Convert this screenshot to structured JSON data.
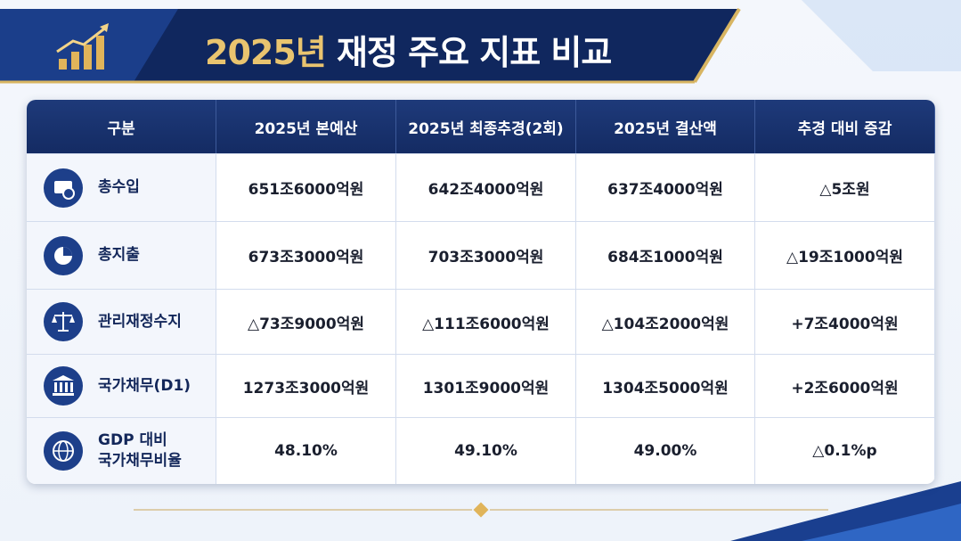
{
  "header": {
    "title": [
      "2025년",
      "재정 주요 지표 비교"
    ]
  },
  "table": {
    "columns": [
      "구분",
      "2025년 본예산",
      "2025년 최종추경(2회)",
      "2025년 결산액",
      "추경 대비 증감"
    ],
    "rows": [
      {
        "label": [
          "총수입"
        ],
        "cells": [
          "651조6000억원",
          "642조4000억원",
          "637조4000억원",
          "△5조원"
        ]
      },
      {
        "label": [
          "총지출"
        ],
        "cells": [
          "673조3000억원",
          "703조3000억원",
          "684조1000억원",
          "△19조1000억원"
        ]
      },
      {
        "label": [
          "관리재정수지"
        ],
        "cells": [
          "△73조9000억원",
          "△111조6000억원",
          "△104조2000억원",
          "+7조4000억원"
        ]
      },
      {
        "label": [
          "국가채무(D1)"
        ],
        "cells": [
          "1273조3000억원",
          "1301조9000억원",
          "1304조5000억원",
          "+2조6000억원"
        ]
      },
      {
        "label": [
          "GDP 대비",
          "국가채무비율"
        ],
        "cells": [
          "48.10%",
          "49.10%",
          "49.00%",
          "△0.1%p"
        ]
      }
    ]
  }
}
